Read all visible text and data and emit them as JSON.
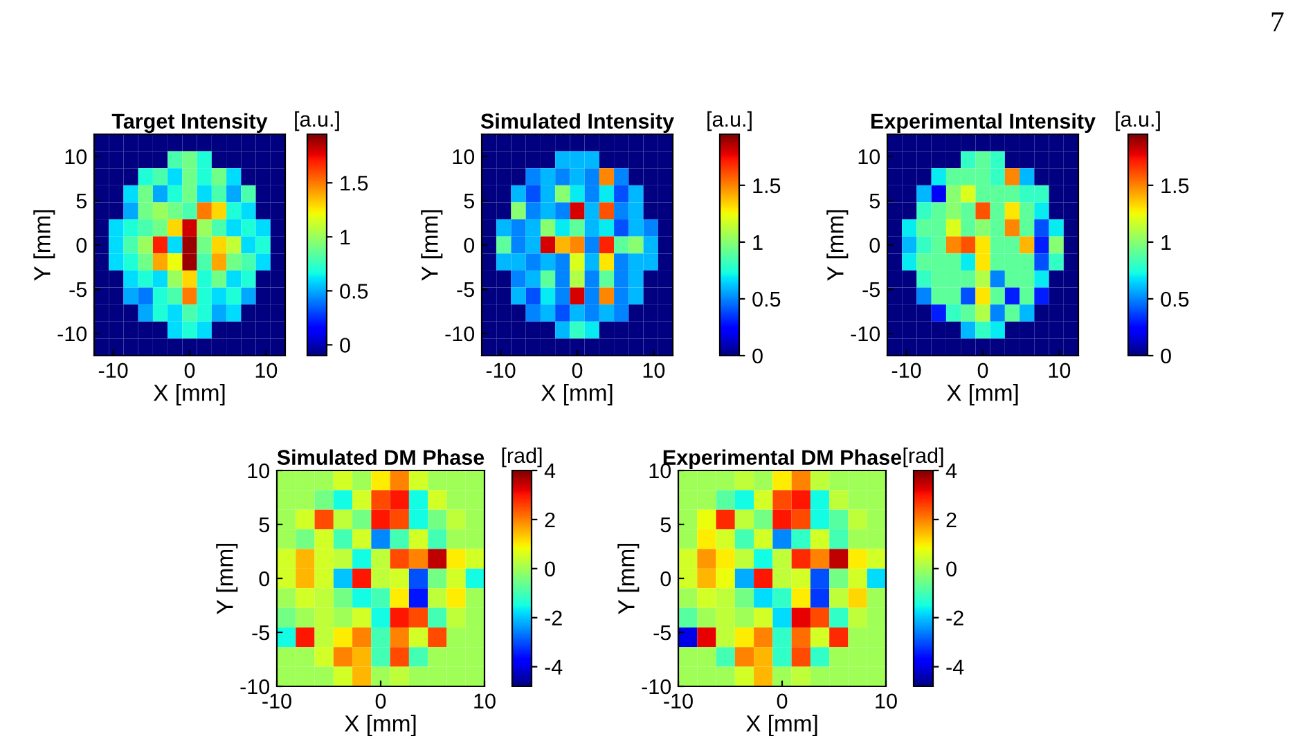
{
  "chart_data": [
    {
      "type": "heatmap",
      "title": "Target Intensity",
      "xlabel": "X [mm]",
      "ylabel": "Y [mm]",
      "clabel": "[a.u.]",
      "annotations": [
        "7"
      ],
      "xlim": [
        -12.5,
        12.5
      ],
      "ylim": [
        -12.5,
        12.5
      ],
      "xticks": [
        -10,
        0,
        10
      ],
      "yticks": [
        -10,
        -5,
        0,
        5,
        10
      ],
      "clim": [
        -0.1,
        1.95
      ],
      "cticks": [
        0,
        0.5,
        1,
        1.5
      ],
      "cells": [
        [
          -0.1,
          -0.1,
          -0.1,
          -0.1,
          -0.1,
          -0.1,
          -0.1,
          -0.1,
          -0.1,
          -0.1,
          -0.1,
          -0.1,
          -0.1
        ],
        [
          -0.1,
          -0.1,
          -0.1,
          -0.1,
          -0.1,
          0.8,
          0.9,
          0.7,
          -0.1,
          -0.1,
          -0.1,
          -0.1,
          -0.1
        ],
        [
          -0.1,
          -0.1,
          -0.1,
          0.7,
          0.8,
          0.6,
          0.9,
          0.7,
          0.9,
          0.6,
          -0.1,
          -0.1,
          -0.1
        ],
        [
          -0.1,
          -0.1,
          0.6,
          0.9,
          0.5,
          0.7,
          0.9,
          0.6,
          0.8,
          0.5,
          0.8,
          -0.1,
          -0.1
        ],
        [
          -0.1,
          -0.1,
          0.5,
          0.9,
          1.0,
          0.9,
          0.8,
          1.5,
          1.3,
          0.7,
          0.6,
          -0.1,
          -0.1
        ],
        [
          -0.1,
          0.6,
          0.7,
          0.8,
          0.9,
          1.3,
          1.8,
          1.0,
          0.8,
          0.6,
          0.7,
          0.6,
          -0.1
        ],
        [
          -0.1,
          0.6,
          0.8,
          1.0,
          1.7,
          0.6,
          1.9,
          0.9,
          1.3,
          1.1,
          0.6,
          0.7,
          -0.1
        ],
        [
          -0.1,
          0.6,
          0.7,
          0.9,
          1.4,
          1.2,
          1.9,
          0.8,
          1.4,
          0.9,
          0.8,
          0.6,
          -0.1
        ],
        [
          -0.1,
          -0.1,
          0.6,
          0.7,
          0.6,
          1.0,
          1.3,
          0.7,
          0.9,
          0.6,
          0.7,
          -0.1,
          -0.1
        ],
        [
          -0.1,
          -0.1,
          0.5,
          0.4,
          0.7,
          0.8,
          1.5,
          0.7,
          0.6,
          0.7,
          0.5,
          -0.1,
          -0.1
        ],
        [
          -0.1,
          -0.1,
          -0.1,
          0.5,
          0.7,
          0.6,
          0.8,
          0.7,
          0.5,
          0.6,
          -0.1,
          -0.1,
          -0.1
        ],
        [
          -0.1,
          -0.1,
          -0.1,
          -0.1,
          -0.1,
          0.6,
          0.7,
          0.6,
          -0.1,
          -0.1,
          -0.1,
          -0.1,
          -0.1
        ],
        [
          -0.1,
          -0.1,
          -0.1,
          -0.1,
          -0.1,
          -0.1,
          -0.1,
          -0.1,
          -0.1,
          -0.1,
          -0.1,
          -0.1,
          -0.1
        ]
      ]
    },
    {
      "type": "heatmap",
      "title": "Simulated Intensity",
      "xlabel": "X [mm]",
      "ylabel": "Y [mm]",
      "clabel": "[a.u.]",
      "xlim": [
        -12.5,
        12.5
      ],
      "ylim": [
        -12.5,
        12.5
      ],
      "xticks": [
        -10,
        0,
        10
      ],
      "yticks": [
        -10,
        -5,
        0,
        5,
        10
      ],
      "clim": [
        0,
        1.95
      ],
      "cticks": [
        0,
        0.5,
        1,
        1.5
      ],
      "cells": [
        [
          0,
          0,
          0,
          0,
          0,
          0,
          0,
          0,
          0,
          0,
          0,
          0,
          0
        ],
        [
          0,
          0,
          0,
          0,
          0,
          0.6,
          0.6,
          0.6,
          0,
          0,
          0,
          0,
          0
        ],
        [
          0,
          0,
          0,
          0.5,
          0.6,
          0.5,
          0.6,
          0.5,
          1.5,
          0.5,
          0,
          0,
          0
        ],
        [
          0,
          0,
          0.6,
          0.4,
          0.6,
          1.0,
          0.7,
          0.5,
          0.7,
          0.4,
          0.6,
          0,
          0
        ],
        [
          0,
          0,
          1.0,
          0.5,
          0.6,
          0.5,
          1.8,
          0.6,
          1.6,
          0.5,
          0.6,
          0,
          0
        ],
        [
          0,
          0.6,
          0.5,
          0.6,
          1.0,
          0.7,
          0.9,
          0.6,
          0.7,
          0.4,
          0.6,
          0.5,
          0
        ],
        [
          0,
          0.9,
          0.5,
          0.6,
          1.8,
          1.4,
          1.5,
          0.5,
          1.7,
          0.9,
          1.0,
          0.6,
          0
        ],
        [
          0,
          0.6,
          0.6,
          0.5,
          0.6,
          0.5,
          1.2,
          0.6,
          1.3,
          0.5,
          0.6,
          0.6,
          0
        ],
        [
          0,
          0,
          0.5,
          0.6,
          0.9,
          0.5,
          1.1,
          0.5,
          0.9,
          0.5,
          0.6,
          0,
          0
        ],
        [
          0,
          0,
          0.6,
          0.4,
          0.7,
          0.5,
          1.8,
          0.5,
          1.5,
          0.5,
          0.6,
          0,
          0
        ],
        [
          0,
          0,
          0,
          0.5,
          0.6,
          0.4,
          0.6,
          0.5,
          0.6,
          0.5,
          0,
          0,
          0
        ],
        [
          0,
          0,
          0,
          0,
          0,
          0.6,
          0.8,
          0.7,
          0,
          0,
          0,
          0,
          0
        ],
        [
          0,
          0,
          0,
          0,
          0,
          0,
          0,
          0,
          0,
          0,
          0,
          0,
          0
        ]
      ]
    },
    {
      "type": "heatmap",
      "title": "Experimental Intensity",
      "xlabel": "X [mm]",
      "ylabel": "Y [mm]",
      "clabel": "[a.u.]",
      "xlim": [
        -12.5,
        12.5
      ],
      "ylim": [
        -12.5,
        12.5
      ],
      "xticks": [
        -10,
        0,
        10
      ],
      "yticks": [
        -10,
        -5,
        0,
        5,
        10
      ],
      "clim": [
        0,
        1.95
      ],
      "cticks": [
        0,
        0.5,
        1,
        1.5
      ],
      "cells": [
        [
          0,
          0,
          0,
          0,
          0,
          0,
          0,
          0,
          0,
          0,
          0,
          0,
          0
        ],
        [
          0,
          0,
          0,
          0,
          0,
          0.8,
          0.9,
          0.8,
          0,
          0,
          0,
          0,
          0
        ],
        [
          0,
          0,
          0,
          0.7,
          0.9,
          0.9,
          0.9,
          0.8,
          1.5,
          0.6,
          0,
          0,
          0
        ],
        [
          0,
          0,
          0.6,
          0.2,
          1.0,
          1.2,
          0.9,
          0.9,
          0.9,
          0.8,
          0.8,
          0,
          0
        ],
        [
          0,
          0,
          0.8,
          0.9,
          1.0,
          0.9,
          1.6,
          0.9,
          1.3,
          0.9,
          0.7,
          0,
          0
        ],
        [
          0,
          0.7,
          0.9,
          0.9,
          1.2,
          0.9,
          1.0,
          0.9,
          1.5,
          0.9,
          0.4,
          0.7,
          0
        ],
        [
          0,
          0.6,
          0.8,
          0.9,
          1.5,
          1.6,
          1.3,
          0.9,
          0.9,
          1.4,
          0.3,
          1.0,
          0
        ],
        [
          0,
          0.7,
          0.9,
          0.9,
          0.9,
          0.7,
          1.3,
          0.9,
          0.9,
          0.9,
          0.4,
          0.8,
          0
        ],
        [
          0,
          0,
          0.8,
          0.9,
          0.9,
          0.9,
          1.1,
          0.5,
          0.9,
          0.9,
          0.7,
          0,
          0
        ],
        [
          0,
          0,
          0.5,
          0.9,
          0.9,
          0.4,
          1.3,
          0.9,
          0.3,
          0.9,
          0.3,
          0,
          0
        ],
        [
          0,
          0,
          0,
          0.3,
          0.8,
          0.9,
          1.1,
          0.5,
          0.9,
          0.6,
          0,
          0,
          0
        ],
        [
          0,
          0,
          0,
          0,
          0,
          0.6,
          0.8,
          0.7,
          0,
          0,
          0,
          0,
          0
        ],
        [
          0,
          0,
          0,
          0,
          0,
          0,
          0,
          0,
          0,
          0,
          0,
          0,
          0
        ]
      ]
    },
    {
      "type": "heatmap",
      "title": "Simulated DM Phase",
      "xlabel": "X [mm]",
      "ylabel": "Y [mm]",
      "clabel": "[rad]",
      "xlim": [
        -10,
        10
      ],
      "ylim": [
        -10,
        10
      ],
      "xticks": [
        -10,
        0,
        10
      ],
      "yticks": [
        -10,
        -5,
        0,
        5,
        10
      ],
      "clim": [
        -4.8,
        4
      ],
      "cticks": [
        -4,
        -2,
        0,
        2,
        4
      ],
      "cells": [
        [
          0,
          0,
          0,
          0.5,
          0,
          1,
          2,
          0.5,
          0,
          0,
          0
        ],
        [
          0,
          0,
          -0.5,
          -1.5,
          0.5,
          2.5,
          3,
          -1.5,
          0.5,
          0,
          0
        ],
        [
          0,
          0.5,
          2.5,
          0.3,
          -0.5,
          3,
          2.5,
          -1.5,
          -0.5,
          0.3,
          0
        ],
        [
          0,
          -0.5,
          0.5,
          -1,
          0.5,
          -2.5,
          -1,
          0.5,
          -1,
          0,
          0
        ],
        [
          0.5,
          1.5,
          0.5,
          0.3,
          -1.5,
          0.3,
          2.5,
          2,
          3.5,
          1,
          0.5
        ],
        [
          0.5,
          1.5,
          0.5,
          -2,
          3,
          0.3,
          0.5,
          -3,
          -0.5,
          0.5,
          -1.5
        ],
        [
          0,
          0.5,
          0.3,
          -0.5,
          -1.5,
          -1,
          1,
          -3.5,
          0.3,
          1,
          0
        ],
        [
          -0.5,
          0,
          0.3,
          0,
          0.5,
          -1.5,
          3,
          2.5,
          -1,
          0.3,
          0
        ],
        [
          -1.5,
          3,
          0.3,
          1,
          2,
          -1,
          2,
          0.5,
          2.5,
          0,
          0
        ],
        [
          0,
          0,
          0.5,
          2,
          1.5,
          -1,
          2.5,
          -1,
          0,
          0,
          0
        ],
        [
          0,
          0,
          0,
          0.5,
          1.5,
          0,
          0.3,
          0,
          0,
          0,
          0
        ]
      ]
    },
    {
      "type": "heatmap",
      "title": "Experimental DM Phase",
      "xlabel": "X [mm]",
      "ylabel": "Y [mm]",
      "clabel": "[rad]",
      "xlim": [
        -10,
        10
      ],
      "ylim": [
        -10,
        10
      ],
      "xticks": [
        -10,
        0,
        10
      ],
      "yticks": [
        -10,
        -5,
        0,
        5,
        10
      ],
      "clim": [
        -4.8,
        4
      ],
      "cticks": [
        -4,
        -2,
        0,
        2,
        4
      ],
      "cells": [
        [
          0,
          0,
          0,
          0.3,
          0,
          1,
          2,
          0.3,
          0,
          0,
          0
        ],
        [
          0,
          0,
          -0.8,
          -1.5,
          0.5,
          2.5,
          3,
          -1.5,
          0.3,
          0,
          0
        ],
        [
          0,
          0.8,
          2.8,
          0.3,
          -0.5,
          3,
          2.5,
          -1.5,
          -0.8,
          0.3,
          0
        ],
        [
          0,
          1,
          0.5,
          -1,
          0.5,
          -2.5,
          -1.2,
          0.5,
          -1,
          0,
          0
        ],
        [
          0.5,
          1.8,
          1,
          0.3,
          -1.5,
          0.3,
          2.8,
          2,
          3.5,
          1,
          0.5
        ],
        [
          0.5,
          1.5,
          0.8,
          -2.2,
          3,
          0.3,
          0.5,
          -3,
          -0.5,
          0.5,
          -1.8
        ],
        [
          0,
          0.5,
          0.3,
          -0.5,
          -1.8,
          -1.2,
          1,
          -3.2,
          0.3,
          1.2,
          0
        ],
        [
          -0.8,
          0,
          0.3,
          0,
          0.5,
          -1.8,
          3.2,
          2.5,
          -1.2,
          0.3,
          0
        ],
        [
          -4,
          3.2,
          0.3,
          1,
          2,
          -1.2,
          2.2,
          0.5,
          2.8,
          0,
          0
        ],
        [
          0,
          0,
          -1,
          2,
          1.5,
          -1.2,
          2.5,
          -1.2,
          0,
          0,
          0
        ],
        [
          0,
          0,
          0,
          0.5,
          1.5,
          0,
          0.3,
          0,
          0,
          0,
          0
        ]
      ]
    }
  ]
}
